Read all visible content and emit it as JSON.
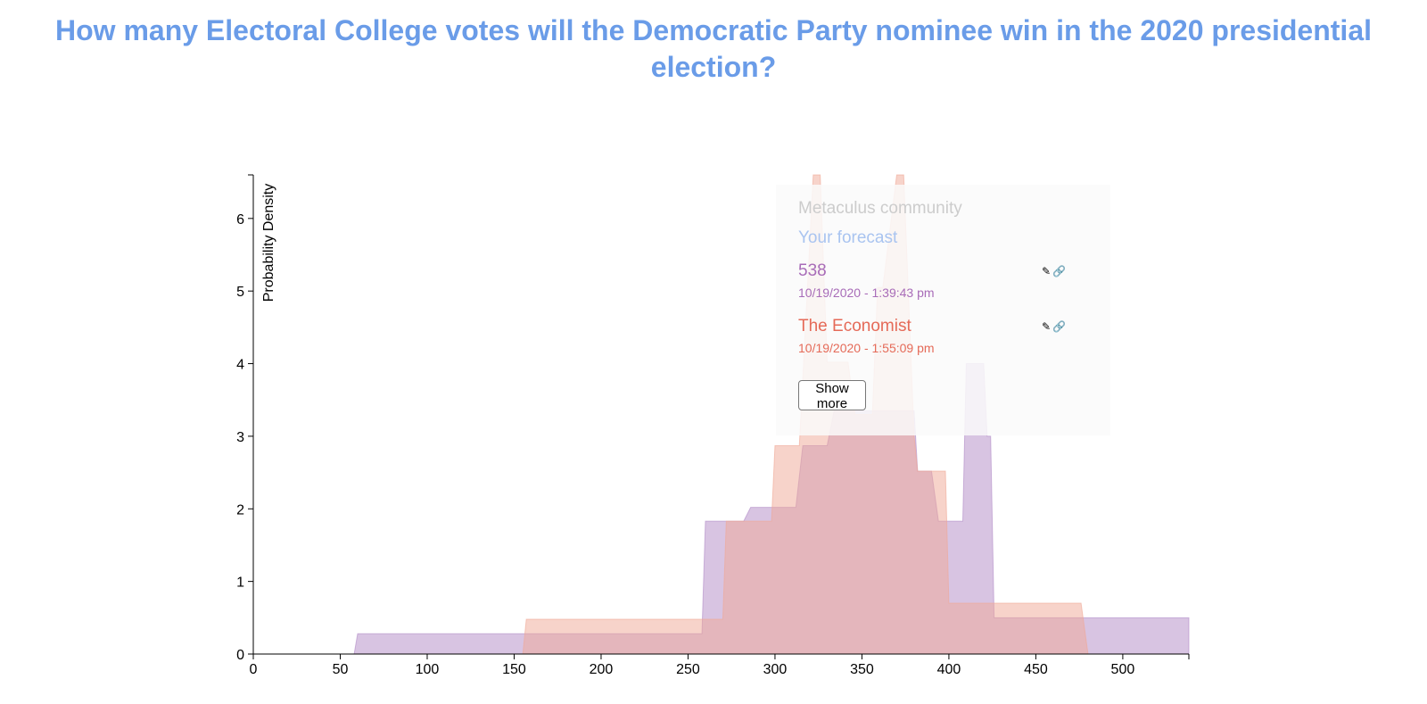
{
  "page": {
    "title": "How many Electoral College votes will the Democratic Party nominee win in the 2020 presidential election?"
  },
  "legend": {
    "community_label": "Metaculus community",
    "your_forecast_label": "Your forecast",
    "entries": [
      {
        "name": "538",
        "timestamp": "10/19/2020 - 1:39:43 pm",
        "color": "#a86cb8"
      },
      {
        "name": "The Economist",
        "timestamp": "10/19/2020 - 1:55:09 pm",
        "color": "#e56a58"
      }
    ],
    "show_more_label": "Show more",
    "community_color": "#cccccc",
    "your_forecast_color": "#a9c4f0"
  },
  "chart_data": {
    "type": "area",
    "title": "How many Electoral College votes will the Democratic Party nominee win in the 2020 presidential election?",
    "xlabel": "",
    "ylabel": "Probability Density",
    "xlim": [
      0,
      538
    ],
    "ylim": [
      0,
      6.6
    ],
    "xticks": [
      0,
      50,
      100,
      150,
      200,
      250,
      300,
      350,
      400,
      450,
      500
    ],
    "yticks": [
      0,
      1,
      2,
      3,
      4,
      5,
      6
    ],
    "series": [
      {
        "name": "538",
        "color": "#b18ac6",
        "points": [
          [
            0,
            0
          ],
          [
            58,
            0
          ],
          [
            60,
            0.28
          ],
          [
            258,
            0.28
          ],
          [
            260,
            1.83
          ],
          [
            282,
            1.83
          ],
          [
            286,
            2.02
          ],
          [
            312,
            2.02
          ],
          [
            316,
            2.87
          ],
          [
            330,
            2.87
          ],
          [
            334,
            3.35
          ],
          [
            380,
            3.35
          ],
          [
            382,
            2.52
          ],
          [
            390,
            2.52
          ],
          [
            394,
            1.83
          ],
          [
            408,
            1.83
          ],
          [
            410,
            4.0
          ],
          [
            420,
            4.0
          ],
          [
            422,
            3.0
          ],
          [
            424,
            3.0
          ],
          [
            426,
            0.5
          ],
          [
            538,
            0.5
          ]
        ]
      },
      {
        "name": "The Economist",
        "color": "#f0a896",
        "points": [
          [
            0,
            0
          ],
          [
            155,
            0
          ],
          [
            157,
            0.48
          ],
          [
            256,
            0.48
          ],
          [
            258,
            0.48
          ],
          [
            270,
            0.48
          ],
          [
            272,
            1.83
          ],
          [
            298,
            1.83
          ],
          [
            300,
            2.87
          ],
          [
            314,
            2.87
          ],
          [
            322,
            6.6
          ],
          [
            326,
            6.6
          ],
          [
            330,
            4.02
          ],
          [
            342,
            4.02
          ],
          [
            346,
            3.3
          ],
          [
            356,
            3.3
          ],
          [
            359,
            5.05
          ],
          [
            362,
            5.05
          ],
          [
            370,
            6.6
          ],
          [
            374,
            6.6
          ],
          [
            380,
            3.0
          ],
          [
            382,
            2.52
          ],
          [
            398,
            2.52
          ],
          [
            400,
            0.7
          ],
          [
            423,
            0.7
          ],
          [
            425,
            0.7
          ],
          [
            476,
            0.7
          ],
          [
            480,
            0
          ],
          [
            538,
            0
          ]
        ]
      }
    ]
  }
}
